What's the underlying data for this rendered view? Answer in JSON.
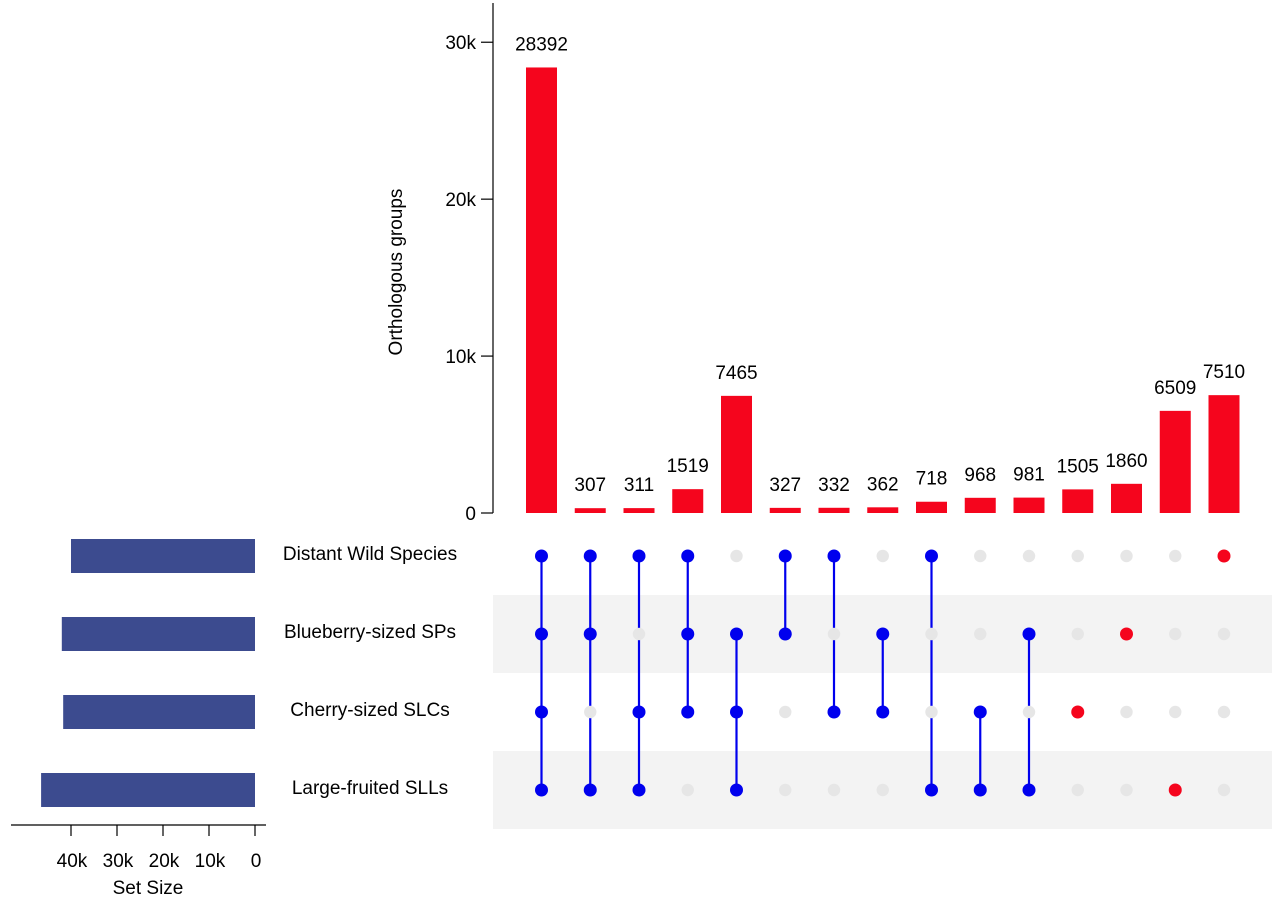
{
  "chart_data": {
    "type": "bar",
    "subtype": "upset",
    "ylabel": "Orthologous groups",
    "y_ticks": [
      "0",
      "10k",
      "20k",
      "30k"
    ],
    "y_tick_values": [
      0,
      10000,
      20000,
      30000
    ],
    "ylim": [
      0,
      32500
    ],
    "sets": [
      "Distant Wild Species",
      "Blueberry-sized SPs",
      "Cherry-sized SLCs",
      "Large-fruited SLLs"
    ],
    "set_size_label": "Set Size",
    "set_size_ticks": [
      "40k",
      "30k",
      "20k",
      "10k",
      "0"
    ],
    "set_size_tick_values": [
      40000,
      30000,
      20000,
      10000,
      0
    ],
    "set_size_xlim": [
      0,
      48000
    ],
    "set_sizes": [
      40000,
      42000,
      41700,
      46500
    ],
    "intersections": [
      {
        "value": 28392,
        "members": [
          0,
          1,
          2,
          3
        ]
      },
      {
        "value": 307,
        "members": [
          0,
          1,
          3
        ]
      },
      {
        "value": 311,
        "members": [
          0,
          2,
          3
        ]
      },
      {
        "value": 1519,
        "members": [
          0,
          1,
          2
        ]
      },
      {
        "value": 7465,
        "members": [
          1,
          2,
          3
        ]
      },
      {
        "value": 327,
        "members": [
          0,
          1
        ]
      },
      {
        "value": 332,
        "members": [
          0,
          2
        ]
      },
      {
        "value": 362,
        "members": [
          1,
          2
        ]
      },
      {
        "value": 718,
        "members": [
          0,
          3
        ]
      },
      {
        "value": 968,
        "members": [
          2,
          3
        ]
      },
      {
        "value": 981,
        "members": [
          1,
          3
        ]
      },
      {
        "value": 1505,
        "members": [
          2
        ]
      },
      {
        "value": 1860,
        "members": [
          1
        ]
      },
      {
        "value": 6509,
        "members": [
          3
        ]
      },
      {
        "value": 7510,
        "members": [
          0
        ]
      }
    ],
    "colors": {
      "intersection_bar": "#f5051d",
      "set_bar": "#3c4b8f",
      "multi_dot": "#0000ee",
      "single_dot": "#f5051d",
      "empty_dot": "#e6e6e6",
      "row_shade": "#f3f3f3"
    }
  }
}
